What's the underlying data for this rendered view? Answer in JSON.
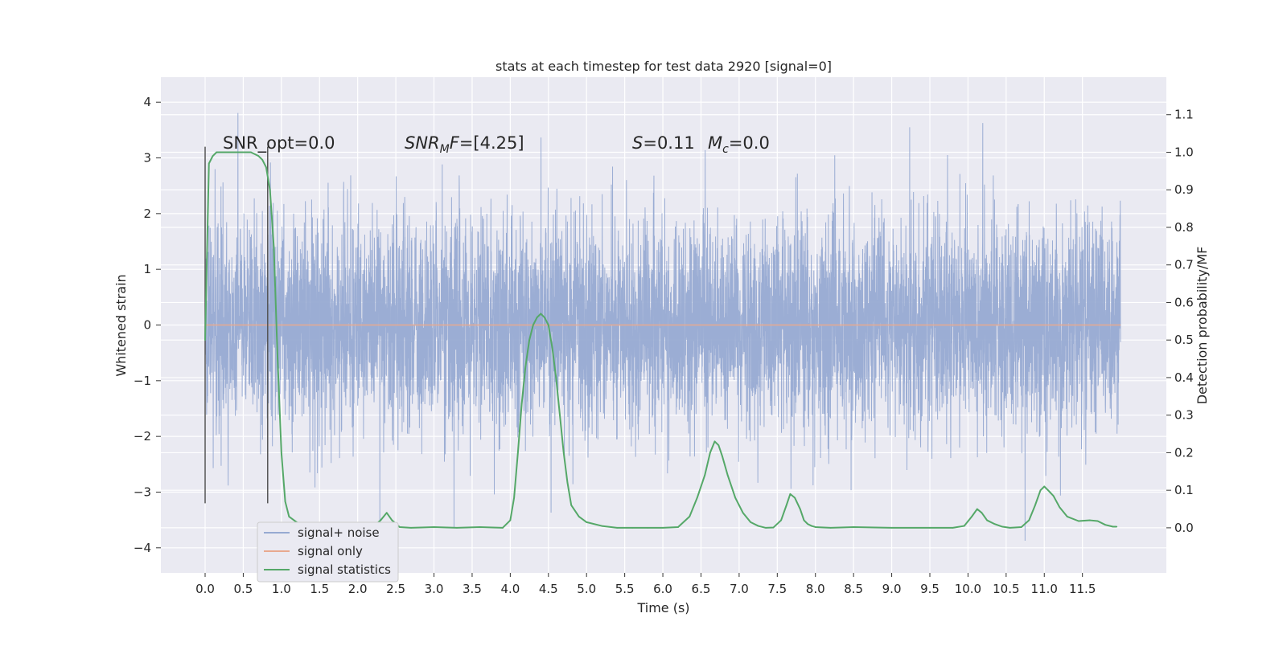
{
  "chart_data": {
    "type": "line",
    "title": "stats at each timestep for test data 2920 [signal=0]",
    "xlabel": "Time (s)",
    "ylabel_left": "Whitened strain",
    "ylabel_right": "Detection probability/MF",
    "xlim": [
      -0.58,
      12.6
    ],
    "ylim_left": [
      -4.45,
      4.45
    ],
    "ylim_right": [
      -0.12,
      1.2
    ],
    "x_ticks": [
      "0.0",
      "0.5",
      "1.0",
      "1.5",
      "2.0",
      "2.5",
      "3.0",
      "3.5",
      "4.0",
      "4.5",
      "5.0",
      "5.5",
      "6.0",
      "6.5",
      "7.0",
      "7.5",
      "8.0",
      "8.5",
      "9.0",
      "9.5",
      "10.0",
      "10.5",
      "11.0",
      "11.5"
    ],
    "y_ticks_left": [
      "4",
      "3",
      "2",
      "1",
      "0",
      "−1",
      "−2",
      "−3",
      "−4"
    ],
    "y_ticks_right": [
      "1.1",
      "1.0",
      "0.9",
      "0.8",
      "0.7",
      "0.6",
      "0.5",
      "0.4",
      "0.3",
      "0.2",
      "0.1",
      "0.0"
    ],
    "grid": true,
    "legend_position": "lower-left",
    "annotations": {
      "snr_opt": "SNR_opt=0.0",
      "snr_mf_sym": "SNR",
      "snr_mf_sub": "M",
      "snr_mf_sym2": "F",
      "snr_mf_val": "=[4.25]",
      "s_sym": "S",
      "s_val": "=0.11",
      "mc_sym": "M",
      "mc_sub": "c",
      "mc_val": "=0.0"
    },
    "series": [
      {
        "name": "signal+ noise",
        "color": "#97aad2",
        "axis": "left",
        "t_range": [
          0,
          12
        ],
        "amplitude_range": [
          -4.1,
          4.05
        ],
        "typical_envelope": [
          -1.5,
          1.5
        ]
      },
      {
        "name": "signal only",
        "color": "#e8a98f",
        "axis": "left",
        "x": [
          0,
          12
        ],
        "y": [
          0,
          0
        ]
      },
      {
        "name": "signal statistics",
        "color": "#55a868",
        "axis": "right",
        "x": [
          0.0,
          0.05,
          0.1,
          0.15,
          0.2,
          0.3,
          0.4,
          0.5,
          0.6,
          0.7,
          0.75,
          0.8,
          0.85,
          0.9,
          0.95,
          1.0,
          1.05,
          1.1,
          1.2,
          1.3,
          1.5,
          1.8,
          2.0,
          2.2,
          2.3,
          2.38,
          2.45,
          2.55,
          2.7,
          3.0,
          3.3,
          3.6,
          3.9,
          4.0,
          4.05,
          4.1,
          4.15,
          4.2,
          4.25,
          4.3,
          4.35,
          4.4,
          4.45,
          4.5,
          4.55,
          4.6,
          4.65,
          4.7,
          4.75,
          4.8,
          4.9,
          5.0,
          5.2,
          5.4,
          5.6,
          5.8,
          6.0,
          6.2,
          6.35,
          6.45,
          6.55,
          6.62,
          6.68,
          6.73,
          6.78,
          6.85,
          6.95,
          7.05,
          7.15,
          7.25,
          7.35,
          7.45,
          7.55,
          7.62,
          7.67,
          7.73,
          7.8,
          7.85,
          7.9,
          7.95,
          8.0,
          8.2,
          8.5,
          9.0,
          9.5,
          9.8,
          9.95,
          10.05,
          10.12,
          10.18,
          10.25,
          10.35,
          10.45,
          10.55,
          10.7,
          10.8,
          10.88,
          10.95,
          11.0,
          11.05,
          11.12,
          11.2,
          11.3,
          11.45,
          11.6,
          11.7,
          11.8,
          11.9,
          11.95
        ],
        "y": [
          0.5,
          0.97,
          0.99,
          1.0,
          1.0,
          1.0,
          1.0,
          1.0,
          1.0,
          0.99,
          0.98,
          0.96,
          0.9,
          0.75,
          0.45,
          0.2,
          0.07,
          0.03,
          0.015,
          0.005,
          0.0,
          0.0,
          0.0,
          0.002,
          0.02,
          0.04,
          0.02,
          0.002,
          0.0,
          0.002,
          0.0,
          0.002,
          0.0,
          0.02,
          0.08,
          0.2,
          0.33,
          0.43,
          0.5,
          0.54,
          0.56,
          0.57,
          0.56,
          0.54,
          0.48,
          0.4,
          0.3,
          0.2,
          0.12,
          0.06,
          0.03,
          0.015,
          0.005,
          0.0,
          0.0,
          0.0,
          0.0,
          0.002,
          0.03,
          0.08,
          0.14,
          0.2,
          0.23,
          0.22,
          0.19,
          0.14,
          0.08,
          0.04,
          0.015,
          0.005,
          0.0,
          0.001,
          0.02,
          0.06,
          0.09,
          0.08,
          0.05,
          0.02,
          0.01,
          0.005,
          0.002,
          0.0,
          0.002,
          0.0,
          0.0,
          0.0,
          0.005,
          0.03,
          0.05,
          0.04,
          0.02,
          0.01,
          0.003,
          0.0,
          0.002,
          0.02,
          0.06,
          0.1,
          0.11,
          0.1,
          0.085,
          0.055,
          0.03,
          0.018,
          0.02,
          0.018,
          0.008,
          0.003,
          0.003
        ]
      }
    ],
    "markers": [
      {
        "x": 0.0,
        "y_range": [
          -3.2,
          3.2
        ],
        "color": "#555555"
      },
      {
        "x": 0.82,
        "y_range": [
          -3.2,
          3.2
        ],
        "color": "#555555"
      }
    ]
  }
}
